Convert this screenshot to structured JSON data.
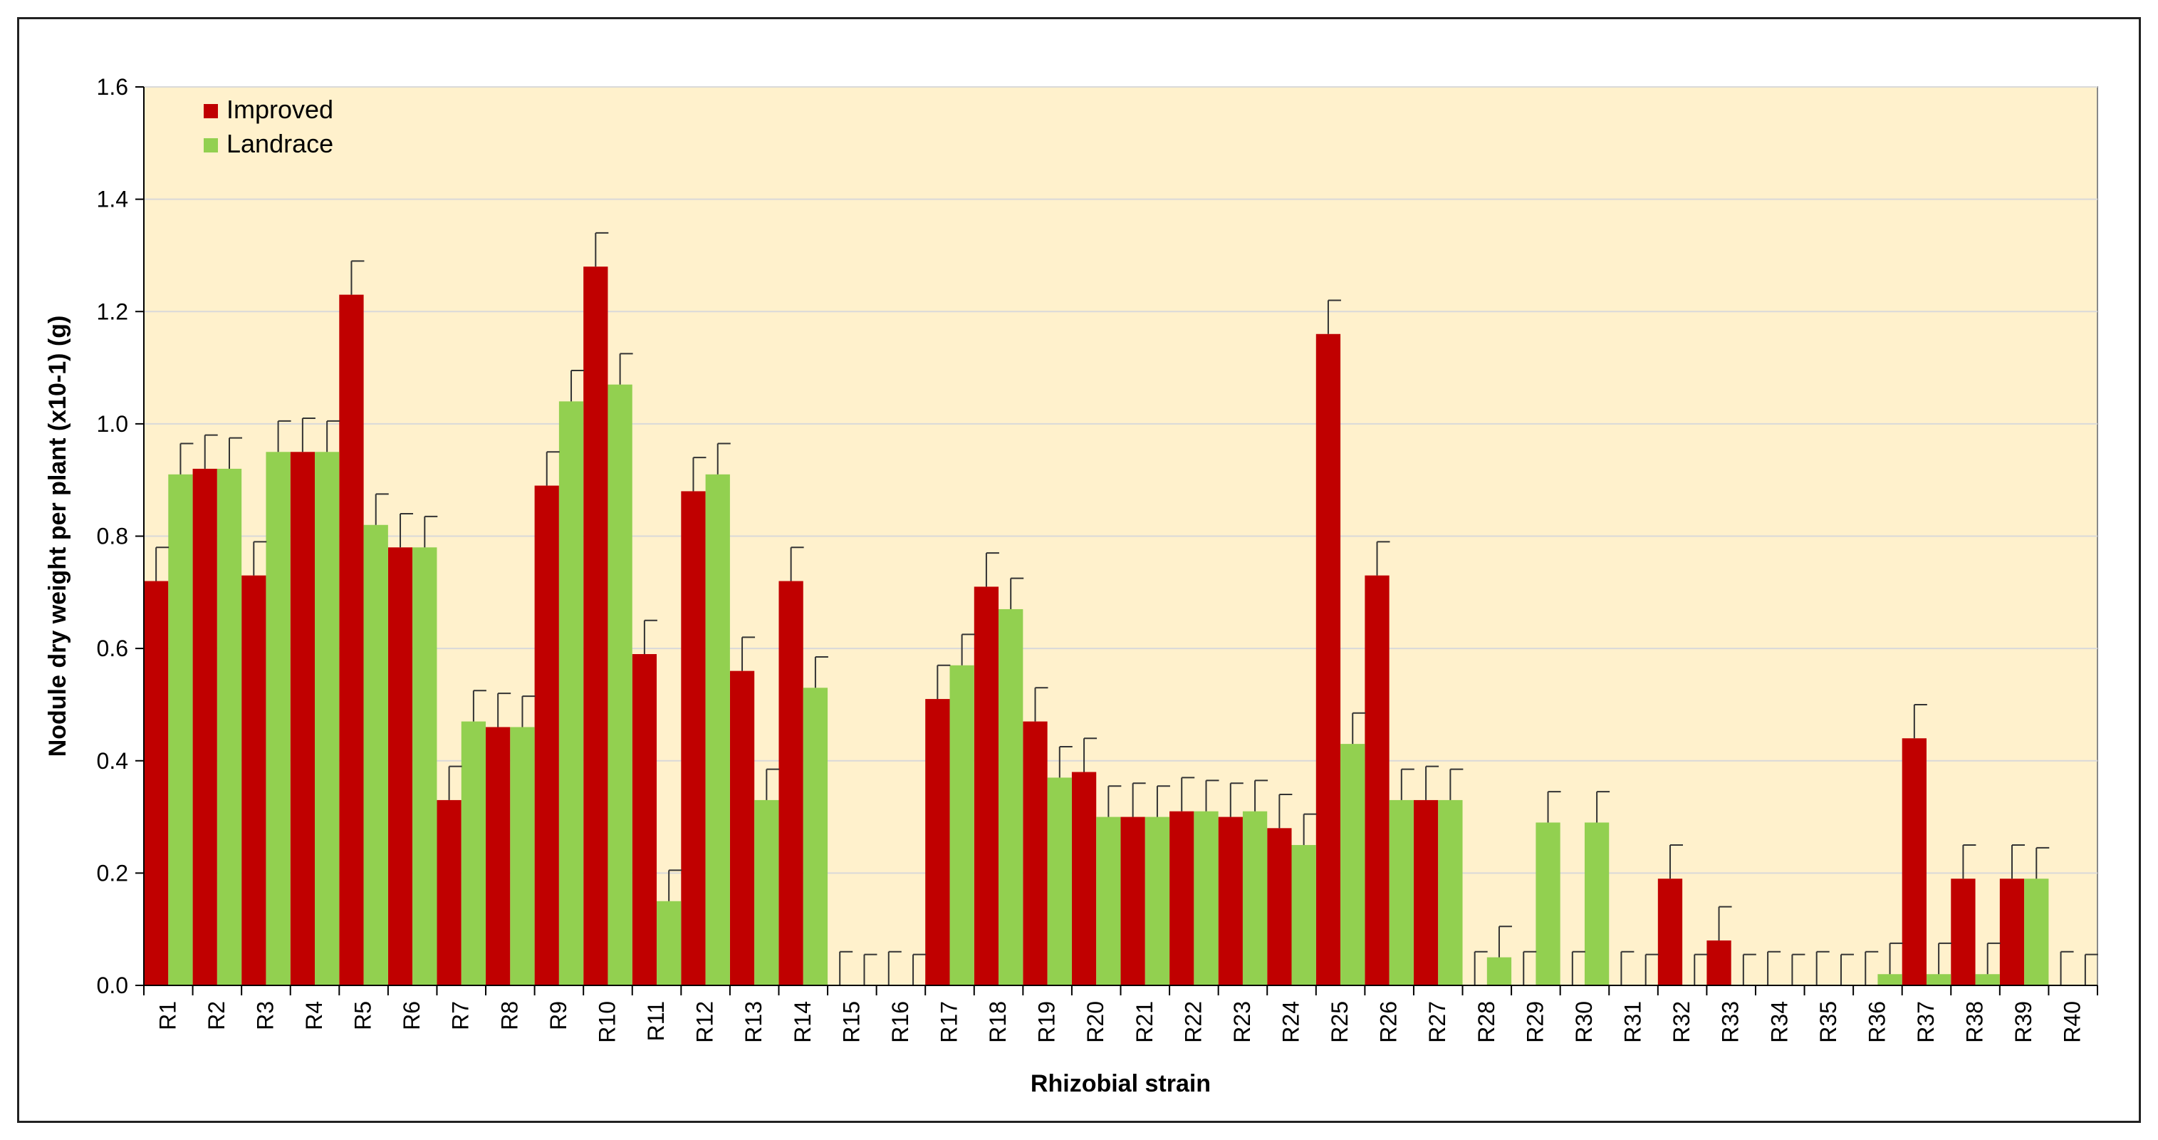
{
  "chart_data": {
    "type": "bar",
    "title": "",
    "xlabel": "Rhizobial strain",
    "ylabel": "Nodule dry weight per plant (x10-1) (g)",
    "ylim": [
      0,
      1.6
    ],
    "yticks": [
      "0.0",
      "0.2",
      "0.4",
      "0.6",
      "0.8",
      "1.0",
      "1.2",
      "1.4",
      "1.6"
    ],
    "grid": true,
    "legend_position": "top-left",
    "colors": {
      "plot_bg": "#FFF1CC",
      "grid": "#D9D9D9",
      "axis": "#000000",
      "error_bar": "#333333"
    },
    "categories": [
      "R1",
      "R2",
      "R3",
      "R4",
      "R5",
      "R6",
      "R7",
      "R8",
      "R9",
      "R10",
      "R11",
      "R12",
      "R13",
      "R14",
      "R15",
      "R16",
      "R17",
      "R18",
      "R19",
      "R20",
      "R21",
      "R22",
      "R23",
      "R24",
      "R25",
      "R26",
      "R27",
      "R28",
      "R29",
      "R30",
      "R31",
      "R32",
      "R33",
      "R34",
      "R35",
      "R36",
      "R37",
      "R38",
      "R39",
      "R40"
    ],
    "series": [
      {
        "name": "Improved",
        "color": "#C00000",
        "values": [
          0.72,
          0.92,
          0.73,
          0.95,
          1.23,
          0.78,
          0.33,
          0.46,
          0.89,
          1.28,
          0.59,
          0.88,
          0.56,
          0.72,
          0,
          0,
          0.51,
          0.71,
          0.47,
          0.38,
          0.3,
          0.31,
          0.3,
          0.28,
          1.16,
          0.73,
          0.33,
          0,
          0,
          0,
          0,
          0.19,
          0.08,
          0,
          0,
          0,
          0.44,
          0.19,
          0.19,
          0
        ],
        "errors": [
          0.06,
          0.06,
          0.06,
          0.06,
          0.06,
          0.06,
          0.06,
          0.06,
          0.06,
          0.06,
          0.06,
          0.06,
          0.06,
          0.06,
          0.06,
          0.06,
          0.06,
          0.06,
          0.06,
          0.06,
          0.06,
          0.06,
          0.06,
          0.06,
          0.06,
          0.06,
          0.06,
          0.06,
          0.06,
          0.06,
          0.06,
          0.06,
          0.06,
          0.06,
          0.06,
          0.06,
          0.06,
          0.06,
          0.06,
          0.06
        ]
      },
      {
        "name": "Landrace",
        "color": "#92D050",
        "values": [
          0.91,
          0.92,
          0.95,
          0.95,
          0.82,
          0.78,
          0.47,
          0.46,
          1.04,
          1.07,
          0.15,
          0.91,
          0.33,
          0.53,
          0,
          0,
          0.57,
          0.67,
          0.37,
          0.3,
          0.3,
          0.31,
          0.31,
          0.25,
          0.43,
          0.33,
          0.33,
          0.05,
          0.29,
          0.29,
          0,
          0,
          0,
          0,
          0,
          0.02,
          0.02,
          0.02,
          0.19,
          0
        ],
        "errors": [
          0.055,
          0.055,
          0.055,
          0.055,
          0.055,
          0.055,
          0.055,
          0.055,
          0.055,
          0.055,
          0.055,
          0.055,
          0.055,
          0.055,
          0.055,
          0.055,
          0.055,
          0.055,
          0.055,
          0.055,
          0.055,
          0.055,
          0.055,
          0.055,
          0.055,
          0.055,
          0.055,
          0.055,
          0.055,
          0.055,
          0.055,
          0.055,
          0.055,
          0.055,
          0.055,
          0.055,
          0.055,
          0.055,
          0.055,
          0.055
        ]
      }
    ]
  }
}
